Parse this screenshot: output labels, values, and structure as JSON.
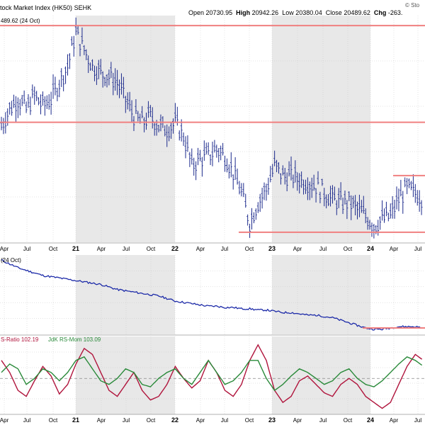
{
  "header": {
    "title": "tock Market Index (HK50)",
    "exchange": "SEHK",
    "ohlc": [
      {
        "key": "Open",
        "value": "20730.95"
      },
      {
        "key": "High",
        "value": "20942.26"
      },
      {
        "key": "Low",
        "value": "20380.04"
      },
      {
        "key": "Close",
        "value": "20489.62"
      },
      {
        "key": "Chg",
        "value": "-263."
      }
    ],
    "source": "© Sto"
  },
  "panels": {
    "price_label": "489.62 (24 Oct)",
    "rs_label": "(24 Oct)",
    "rrg_ratio_label": "S-Ratio 102.19",
    "rrg_mom_label": "JdK RS-Mom 103.09"
  },
  "x_axis": {
    "ticks": [
      "Apr",
      "Jul",
      "Oct",
      "21",
      "Apr",
      "Jul",
      "Oct",
      "22",
      "Apr",
      "Jul",
      "Oct",
      "23",
      "Apr",
      "Jul",
      "Oct",
      "24",
      "Apr",
      "Jul"
    ],
    "year_ticks": [
      "21",
      "22",
      "23",
      "24"
    ]
  },
  "colors": {
    "price_bars": "#1c2a8c",
    "rs_line": "#1c2aa8",
    "rs_ratio": "#b0143c",
    "rs_mom": "#2a8a3a",
    "levels": "#f08080",
    "shade": "#e8e8e8",
    "grid": "#c8c8c8"
  },
  "chart_data": [
    {
      "type": "ohlc",
      "title": "tock Market Index (HK50)",
      "x": [
        "2020-04",
        "2020-05",
        "2020-06",
        "2020-07",
        "2020-08",
        "2020-09",
        "2020-10",
        "2020-11",
        "2020-12",
        "2021-01",
        "2021-02",
        "2021-03",
        "2021-04",
        "2021-05",
        "2021-06",
        "2021-07",
        "2021-08",
        "2021-09",
        "2021-10",
        "2021-11",
        "2021-12",
        "2022-01",
        "2022-02",
        "2022-03",
        "2022-04",
        "2022-05",
        "2022-06",
        "2022-07",
        "2022-08",
        "2022-09",
        "2022-10",
        "2022-11",
        "2022-12",
        "2023-01",
        "2023-02",
        "2023-03",
        "2023-04",
        "2023-05",
        "2023-06",
        "2023-07",
        "2023-08",
        "2023-09",
        "2023-10",
        "2023-11",
        "2023-12",
        "2024-01",
        "2024-02",
        "2024-03",
        "2024-04",
        "2024-05",
        "2024-06",
        "2024-07"
      ],
      "series": [
        {
          "values": [
            0.77,
            0.82,
            0.85,
            0.82,
            0.86,
            0.83,
            0.85,
            0.9,
            0.95,
            1.05,
            1.0,
            0.95,
            0.93,
            0.92,
            0.9,
            0.85,
            0.8,
            0.78,
            0.8,
            0.77,
            0.76,
            0.78,
            0.74,
            0.65,
            0.67,
            0.68,
            0.7,
            0.68,
            0.63,
            0.57,
            0.48,
            0.54,
            0.58,
            0.65,
            0.62,
            0.62,
            0.61,
            0.6,
            0.59,
            0.57,
            0.55,
            0.54,
            0.54,
            0.52,
            0.5,
            0.47,
            0.49,
            0.5,
            0.55,
            0.58,
            0.57,
            0.55
          ]
        }
      ],
      "levels": [
        1.07,
        0.78,
        0.45
      ],
      "levels_partial": [
        0.62
      ]
    },
    {
      "type": "line",
      "label": "(24 Oct)",
      "x_start": "2020-04",
      "series": [
        {
          "values": [
            0.96,
            0.93,
            0.9,
            0.88,
            0.86,
            0.84,
            0.83,
            0.82,
            0.81,
            0.8,
            0.79,
            0.78,
            0.77,
            0.75,
            0.73,
            0.72,
            0.71,
            0.7,
            0.69,
            0.68,
            0.66,
            0.64,
            0.63,
            0.62,
            0.61,
            0.6,
            0.6,
            0.59,
            0.59,
            0.58,
            0.58,
            0.57,
            0.57,
            0.56,
            0.55,
            0.55,
            0.54,
            0.53,
            0.53,
            0.52,
            0.51,
            0.49,
            0.47,
            0.45,
            0.43,
            0.42,
            0.42,
            0.43,
            0.44,
            0.44,
            0.44,
            0.43
          ]
        }
      ],
      "support": 0.43
    },
    {
      "type": "line",
      "series": [
        {
          "name": "S-Ratio 102.19",
          "values": [
            101.5,
            100.5,
            99.0,
            98.5,
            99.8,
            101.0,
            100.2,
            98.7,
            99.5,
            101.2,
            102.5,
            102.0,
            100.5,
            99.0,
            98.5,
            99.5,
            100.5,
            99.0,
            98.2,
            98.5,
            99.5,
            101.0,
            100.0,
            99.2,
            99.8,
            101.5,
            100.5,
            99.0,
            98.5,
            99.5,
            101.5,
            102.8,
            101.5,
            99.0,
            98.0,
            98.5,
            99.8,
            100.2,
            99.5,
            98.8,
            98.5,
            99.5,
            100.0,
            99.5,
            98.5,
            98.0,
            97.5,
            98.0,
            99.5,
            101.0,
            102.0,
            101.5
          ]
        },
        {
          "name": "JdK RS-Mom 103.09",
          "values": [
            100.5,
            101.2,
            100.8,
            99.5,
            100.0,
            100.8,
            100.5,
            99.8,
            100.5,
            101.5,
            101.8,
            100.8,
            99.8,
            99.5,
            100.0,
            100.8,
            100.5,
            99.5,
            99.3,
            100.0,
            100.5,
            100.8,
            100.0,
            99.5,
            100.5,
            101.5,
            100.5,
            99.5,
            99.8,
            100.5,
            101.5,
            101.5,
            100.0,
            99.0,
            99.5,
            100.2,
            100.8,
            100.5,
            100.0,
            99.5,
            99.8,
            100.5,
            100.8,
            100.0,
            99.5,
            99.3,
            99.8,
            100.5,
            101.2,
            101.8,
            101.5,
            101.0
          ]
        }
      ],
      "ylim": [
        97,
        103.5
      ]
    }
  ]
}
